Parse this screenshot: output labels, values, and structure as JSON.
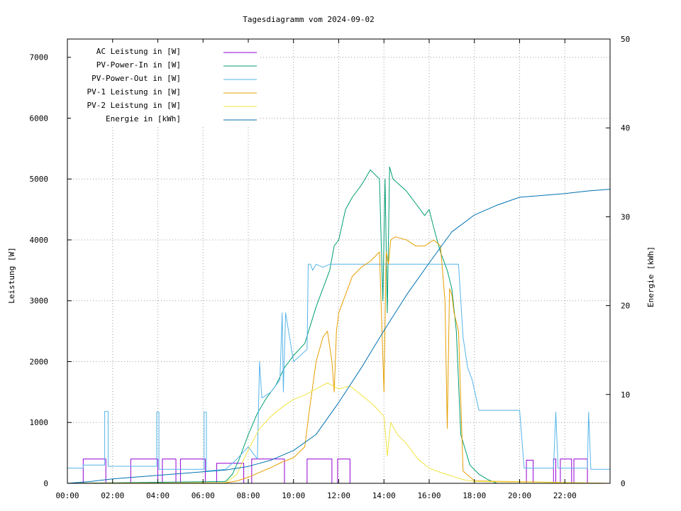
{
  "chart_data": {
    "type": "line",
    "title": "Tagesdiagramm vom 2024-09-02",
    "xlabel": "",
    "ylabel": "Leistung [W]",
    "y2label": "Energie [kWh]",
    "xlim": [
      0,
      24
    ],
    "ylim": [
      0,
      7300
    ],
    "y2lim": [
      0,
      50
    ],
    "x_ticks": [
      {
        "value": 0,
        "label": "00:00"
      },
      {
        "value": 2,
        "label": "02:00"
      },
      {
        "value": 4,
        "label": "04:00"
      },
      {
        "value": 6,
        "label": "06:00"
      },
      {
        "value": 8,
        "label": "08:00"
      },
      {
        "value": 10,
        "label": "10:00"
      },
      {
        "value": 12,
        "label": "12:00"
      },
      {
        "value": 14,
        "label": "14:00"
      },
      {
        "value": 16,
        "label": "16:00"
      },
      {
        "value": 18,
        "label": "18:00"
      },
      {
        "value": 20,
        "label": "20:00"
      },
      {
        "value": 22,
        "label": "22:00"
      }
    ],
    "y_ticks": [
      0,
      1000,
      2000,
      3000,
      4000,
      5000,
      6000,
      7000
    ],
    "y2_ticks": [
      0,
      10,
      20,
      30,
      40,
      50
    ],
    "grid": true,
    "legend_position": "top-left",
    "series": [
      {
        "name": "AC Leistung in [W]",
        "color": "#9400d3",
        "axis": "y",
        "x": [
          0,
          0.7,
          0.7,
          1.7,
          1.7,
          2.8,
          2.8,
          4.0,
          4.0,
          4.2,
          4.2,
          4.8,
          4.8,
          5.0,
          5.0,
          6.1,
          6.1,
          6.6,
          6.6,
          7.8,
          7.8,
          8.15,
          8.15,
          9.6,
          9.6,
          10.6,
          10.6,
          11.7,
          11.7,
          11.95,
          11.95,
          12.5,
          12.5,
          20.3,
          20.3,
          20.6,
          20.6,
          21.5,
          21.5,
          21.6,
          21.6,
          21.8,
          21.8,
          22.3,
          22.3,
          22.4,
          22.4,
          23.0,
          23.0,
          24.0
        ],
        "y": [
          0,
          0,
          400,
          400,
          0,
          0,
          400,
          400,
          0,
          0,
          400,
          400,
          0,
          0,
          400,
          400,
          0,
          0,
          330,
          330,
          0,
          0,
          400,
          400,
          0,
          0,
          400,
          400,
          0,
          0,
          400,
          400,
          0,
          0,
          380,
          380,
          0,
          0,
          400,
          400,
          0,
          0,
          400,
          400,
          0,
          0,
          400,
          400,
          0,
          0
        ]
      },
      {
        "name": "PV-Power-In in [W]",
        "color": "#009e73",
        "axis": "y",
        "x": [
          0,
          7.0,
          7.3,
          7.6,
          8.0,
          8.4,
          8.8,
          9.2,
          9.6,
          10.0,
          10.5,
          11.0,
          11.3,
          11.6,
          11.8,
          12.0,
          12.3,
          12.6,
          13.0,
          13.4,
          13.8,
          13.95,
          14.05,
          14.15,
          14.25,
          14.4,
          14.7,
          15.0,
          15.4,
          15.8,
          16.0,
          16.2,
          16.5,
          16.8,
          17.0,
          17.2,
          17.4,
          17.8,
          18.2,
          18.6,
          19.0,
          24.0
        ],
        "y": [
          0,
          30,
          150,
          400,
          800,
          1150,
          1400,
          1600,
          1900,
          2100,
          2300,
          2900,
          3200,
          3500,
          3900,
          4000,
          4500,
          4700,
          4900,
          5150,
          5000,
          3000,
          5000,
          2800,
          5200,
          5000,
          4900,
          4800,
          4600,
          4400,
          4500,
          4200,
          3800,
          3500,
          3200,
          2500,
          800,
          300,
          150,
          60,
          0,
          0
        ]
      },
      {
        "name": "PV-Power-Out in [W]",
        "color": "#56b4e9",
        "axis": "y",
        "x": [
          0,
          0.7,
          0.7,
          1.65,
          1.65,
          1.8,
          1.8,
          3.95,
          3.95,
          4.05,
          4.05,
          6.05,
          6.05,
          6.15,
          6.15,
          7.0,
          7.5,
          8.0,
          8.4,
          8.5,
          8.6,
          9.0,
          9.4,
          9.5,
          9.55,
          9.65,
          10.0,
          10.6,
          10.65,
          10.75,
          10.85,
          11.0,
          11.3,
          11.6,
          11.8,
          12.0,
          13.0,
          14.0,
          15.0,
          16.0,
          16.8,
          17.0,
          17.3,
          17.5,
          17.7,
          17.9,
          18.2,
          20.0,
          20.2,
          21.0,
          21.5,
          21.6,
          21.7,
          22.5,
          23.0,
          23.05,
          23.15,
          24.0
        ],
        "y": [
          250,
          250,
          300,
          300,
          1180,
          1180,
          280,
          280,
          1170,
          1170,
          230,
          230,
          1170,
          1170,
          200,
          230,
          400,
          600,
          400,
          2000,
          1400,
          1500,
          1700,
          2800,
          1500,
          2800,
          2000,
          2200,
          3600,
          3600,
          3500,
          3600,
          3550,
          3600,
          3600,
          3600,
          3600,
          3600,
          3600,
          3600,
          3600,
          3600,
          3600,
          2400,
          1900,
          1700,
          1200,
          1200,
          250,
          250,
          250,
          1170,
          250,
          250,
          250,
          1170,
          230,
          230
        ]
      },
      {
        "name": "PV-1 Leistung in [W]",
        "color": "#e69f00",
        "axis": "y",
        "x": [
          0,
          7.0,
          7.5,
          8.0,
          8.5,
          9.0,
          9.5,
          10.0,
          10.5,
          10.7,
          11.0,
          11.3,
          11.5,
          11.7,
          11.8,
          11.9,
          12.0,
          12.3,
          12.6,
          13.0,
          13.4,
          13.8,
          14.0,
          14.1,
          14.2,
          14.3,
          14.5,
          15.0,
          15.4,
          15.8,
          16.2,
          16.5,
          16.7,
          16.8,
          16.9,
          17.0,
          17.1,
          17.3,
          17.5,
          18.0,
          24.0
        ],
        "y": [
          0,
          10,
          40,
          100,
          180,
          260,
          350,
          420,
          600,
          1200,
          2000,
          2400,
          2500,
          2000,
          1500,
          2500,
          2800,
          3100,
          3400,
          3550,
          3650,
          3800,
          1500,
          3800,
          3600,
          4000,
          4050,
          4000,
          3900,
          3900,
          4000,
          3900,
          3000,
          900,
          3200,
          3100,
          2800,
          2500,
          200,
          40,
          0
        ]
      },
      {
        "name": "PV-2 Leistung in [W]",
        "color": "#f0e442",
        "axis": "y",
        "x": [
          0,
          7.0,
          7.5,
          8.0,
          8.5,
          9.0,
          9.5,
          10.0,
          10.5,
          11.0,
          11.5,
          12.0,
          12.5,
          13.0,
          13.5,
          14.0,
          14.15,
          14.3,
          14.6,
          15.0,
          15.5,
          16.0,
          16.5,
          17.0,
          17.5,
          18.0,
          24.0
        ],
        "y": [
          0,
          10,
          150,
          550,
          900,
          1100,
          1250,
          1380,
          1450,
          1550,
          1650,
          1550,
          1600,
          1450,
          1300,
          1100,
          450,
          1000,
          800,
          650,
          400,
          250,
          180,
          120,
          60,
          30,
          0
        ]
      },
      {
        "name": "Energie in [kWh]",
        "color": "#0072b2",
        "axis": "y2",
        "x": [
          0,
          1.0,
          2.0,
          3.0,
          4.0,
          5.0,
          6.0,
          7.0,
          8.0,
          9.0,
          10.0,
          11.0,
          12.0,
          13.0,
          14.0,
          15.0,
          16.0,
          17.0,
          18.0,
          19.0,
          20.0,
          21.0,
          22.0,
          23.0,
          24.0
        ],
        "y": [
          0,
          0.2,
          0.5,
          0.7,
          0.9,
          1.1,
          1.3,
          1.5,
          1.9,
          2.6,
          3.7,
          5.5,
          9.1,
          13.0,
          17.2,
          21.2,
          24.8,
          28.3,
          30.2,
          31.3,
          32.2,
          32.4,
          32.6,
          32.9,
          33.1
        ]
      }
    ]
  }
}
